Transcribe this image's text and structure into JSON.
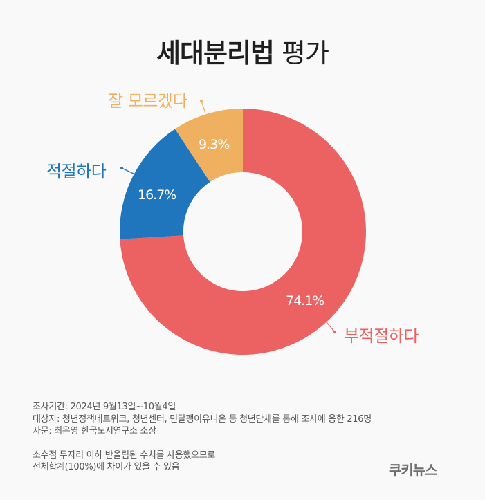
{
  "title": {
    "bold": "세대분리법",
    "light": "평가"
  },
  "chart_data": {
    "type": "pie",
    "subtype": "donut",
    "title": "세대분리법 평가",
    "categories": [
      "부적절하다",
      "적절하다",
      "잘 모르겠다"
    ],
    "values": [
      74.1,
      16.7,
      9.3
    ],
    "unit": "%",
    "colors": [
      "#EC6262",
      "#1F76BC",
      "#EFB160"
    ],
    "start_angle": "12 o'clock",
    "direction": "clockwise",
    "legend": "callout labels with leader lines"
  },
  "slices": [
    {
      "label": "부적절하다",
      "pct_label": "74.1%",
      "color": "#EC6262"
    },
    {
      "label": "적절하다",
      "pct_label": "16.7%",
      "color": "#1F76BC"
    },
    {
      "label": "잘 모르겠다",
      "pct_label": "9.3%",
      "color": "#EFB160"
    }
  ],
  "notes": {
    "period": "조사기간: 2024년 9월13일~10월4일",
    "subjects": "대상자: 청년정책네트워크, 청년센터, 민달팽이유니온 등 청년단체를 통해 조사에 응한 216명",
    "advisor": "자문: 최은영 한국도시연구소 소장",
    "rounding1": "소수점 두자리 이하 반올림된 수치를 사용했으므로",
    "rounding2": "전체합계(100%)에 차이가 있을 수 있음"
  },
  "brand": "쿠키뉴스",
  "colors": {
    "background": "#f9f9f9",
    "title": "#1e1e1e",
    "notes": "#555555",
    "brand": "#6f6f6f"
  }
}
